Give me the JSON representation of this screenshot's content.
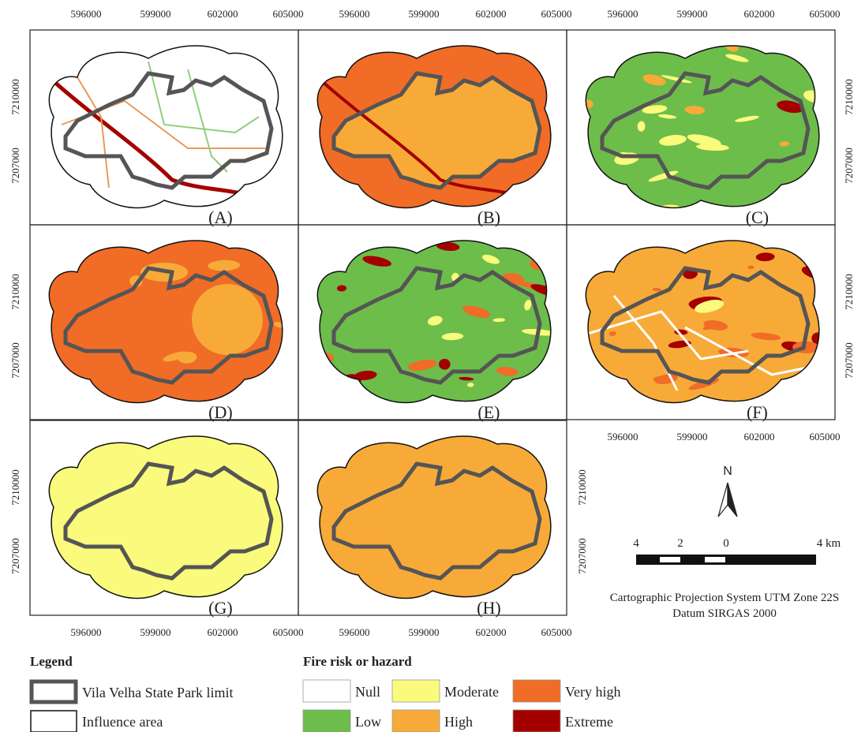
{
  "axes": {
    "x_labels": [
      "596000",
      "599000",
      "602000",
      "605000"
    ],
    "y_labels": [
      "7210000",
      "7207000"
    ]
  },
  "panels": [
    {
      "label": "(A)"
    },
    {
      "label": "(B)"
    },
    {
      "label": "(C)"
    },
    {
      "label": "(D)"
    },
    {
      "label": "(E)"
    },
    {
      "label": "(F)"
    },
    {
      "label": "(G)"
    },
    {
      "label": "(H)"
    }
  ],
  "north_arrow": {
    "label": "N"
  },
  "scale_bar": {
    "labels": [
      "4",
      "2",
      "0",
      "4 km"
    ]
  },
  "projection": [
    "Cartographic Projection System UTM Zone 22S",
    "Datum SIRGAS 2000"
  ],
  "legend": {
    "title": "Legend",
    "items": [
      {
        "label": "Vila Velha State Park limit"
      },
      {
        "label": "Influence area"
      }
    ]
  },
  "fire_risk": {
    "title": "Fire risk or hazard",
    "classes": [
      {
        "label": "Null",
        "color": "#ffffff"
      },
      {
        "label": "Low",
        "color": "#6dbd4b"
      },
      {
        "label": "Moderate",
        "color": "#fafa7c"
      },
      {
        "label": "High",
        "color": "#f8aa38"
      },
      {
        "label": "Very high",
        "color": "#f06c27"
      },
      {
        "label": "Extreme",
        "color": "#a40000"
      }
    ]
  }
}
